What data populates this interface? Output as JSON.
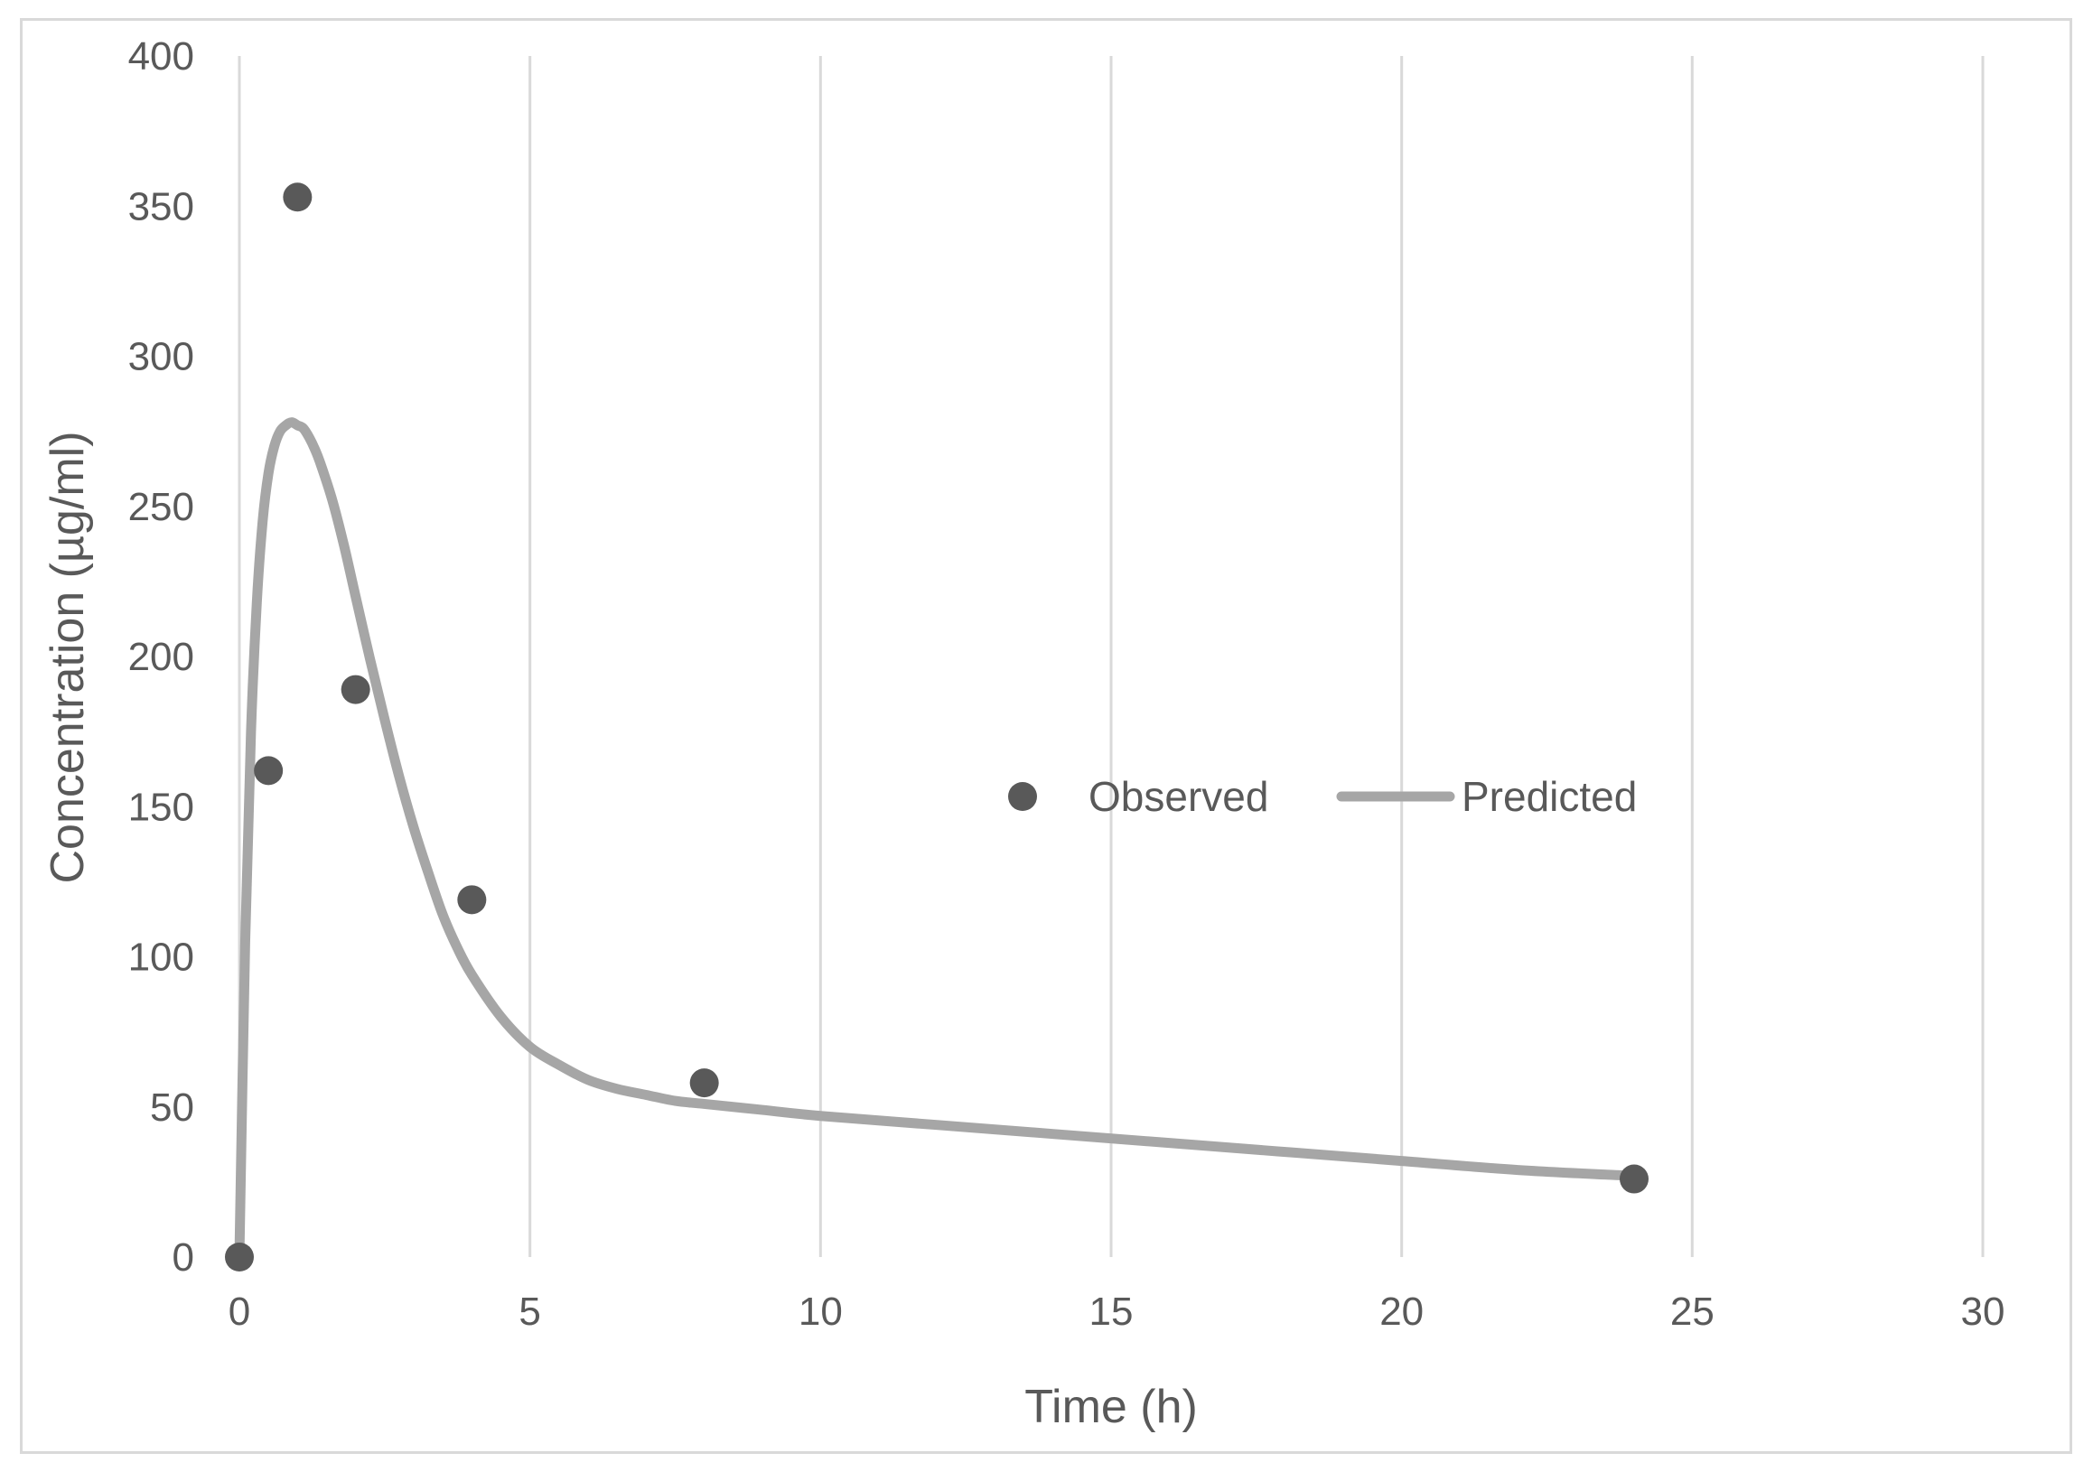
{
  "chart_data": {
    "type": "scatter",
    "title": "",
    "xlabel": "Time (h)",
    "ylabel": "Concentration (µg/ml)",
    "xlim": [
      0,
      30
    ],
    "ylim": [
      0,
      400
    ],
    "xticks": [
      0,
      5,
      10,
      15,
      20,
      25,
      30
    ],
    "yticks": [
      0,
      50,
      100,
      150,
      200,
      250,
      300,
      350,
      400
    ],
    "grid": "vertical",
    "legend_position": "center-right",
    "series": [
      {
        "name": "Observed",
        "kind": "scatter",
        "color": "#595959",
        "x": [
          0,
          0.5,
          1,
          2,
          4,
          8,
          24
        ],
        "y": [
          0,
          162,
          353,
          189,
          119,
          58,
          26
        ]
      },
      {
        "name": "Predicted",
        "kind": "line",
        "color": "#a6a6a6",
        "x": [
          0,
          0.1,
          0.2,
          0.3,
          0.4,
          0.5,
          0.6,
          0.7,
          0.8,
          0.9,
          1.0,
          1.1,
          1.2,
          1.3,
          1.4,
          1.6,
          1.8,
          2.0,
          2.25,
          2.5,
          2.75,
          3.0,
          3.25,
          3.5,
          3.75,
          4.0,
          4.5,
          5.0,
          5.5,
          6.0,
          6.5,
          7.0,
          7.5,
          8.0,
          9.0,
          10.0,
          12.0,
          14.0,
          16.0,
          18.0,
          20.0,
          22.0,
          24.0
        ],
        "y": [
          0,
          105,
          175,
          218,
          245,
          261,
          270,
          275,
          277,
          278,
          277,
          276,
          273,
          269,
          264,
          252,
          237,
          220,
          199,
          179,
          160,
          143,
          128,
          114,
          103,
          94,
          80,
          70,
          64,
          59,
          56,
          54,
          52,
          51,
          49,
          47,
          44,
          41,
          38,
          35,
          32,
          29,
          27
        ]
      }
    ]
  }
}
